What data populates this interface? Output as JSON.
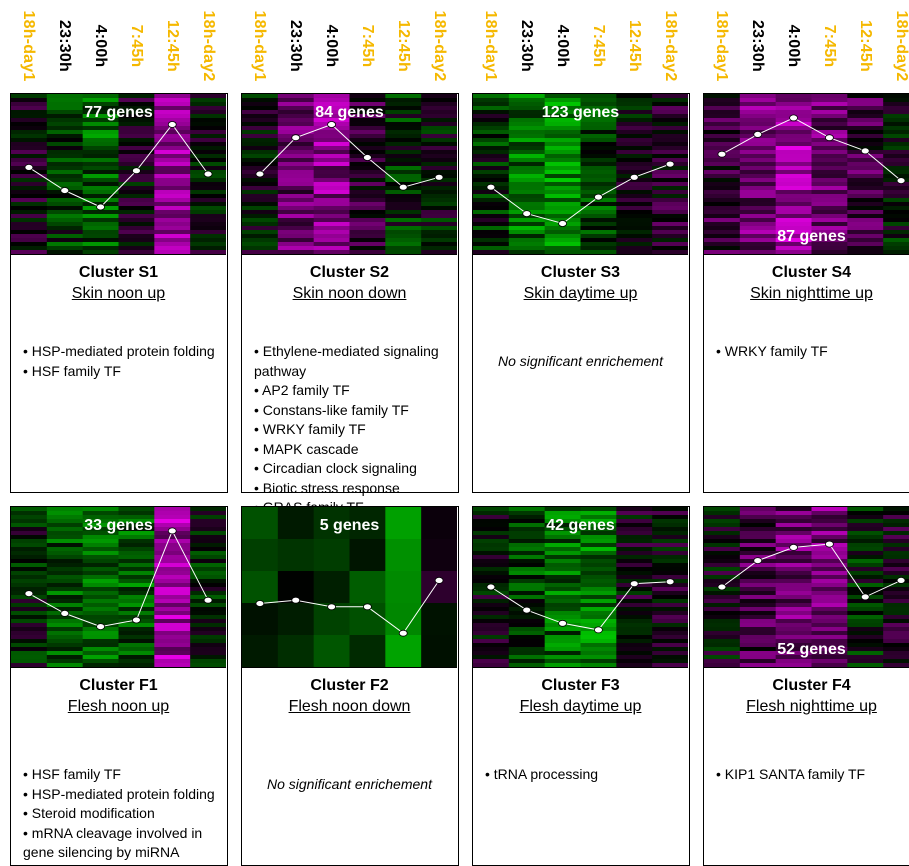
{
  "timepoints": [
    {
      "label": "18h-day1",
      "color": "#f5b800"
    },
    {
      "label": "23:30h",
      "color": "#000000"
    },
    {
      "label": "4:00h",
      "color": "#000000"
    },
    {
      "label": "7:45h",
      "color": "#f5b800"
    },
    {
      "label": "12:45h",
      "color": "#f5b800"
    },
    {
      "label": "18h-day2",
      "color": "#f5b800"
    }
  ],
  "colors": {
    "up": "#ff00ff",
    "down": "#00ff00",
    "neutral": "#000000",
    "line": "#ffffff"
  },
  "clusters": [
    {
      "id": "S1",
      "title": "Cluster S1",
      "subtitle": "Skin noon up",
      "genes": "77 genes",
      "profile": [
        0.1,
        -0.25,
        -0.5,
        0.05,
        0.75,
        0.0
      ],
      "terms": [
        "• HSP-mediated protein folding",
        "• HSF family TF"
      ],
      "empty": ""
    },
    {
      "id": "S2",
      "title": "Cluster S2",
      "subtitle": "Skin noon down",
      "genes": "84 genes",
      "profile": [
        0.0,
        0.55,
        0.75,
        0.25,
        -0.2,
        -0.05
      ],
      "terms": [
        "• Ethylene-mediated signaling pathway",
        "• AP2 family TF",
        "• Constans-like family TF",
        "• WRKY family TF",
        "• MAPK cascade",
        "• Circadian clock signaling",
        "• Biotic stress response",
        "• GRAS family TF"
      ],
      "empty": ""
    },
    {
      "id": "S3",
      "title": "Cluster S3",
      "subtitle": "Skin daytime up",
      "genes": "123 genes",
      "profile": [
        -0.2,
        -0.6,
        -0.75,
        -0.35,
        -0.05,
        0.15
      ],
      "terms": [],
      "empty": "No significant enrichement"
    },
    {
      "id": "S4",
      "title": "Cluster S4",
      "subtitle": "Skin nighttime up",
      "genes": "87 genes",
      "profile": [
        0.3,
        0.6,
        0.85,
        0.55,
        0.35,
        -0.1
      ],
      "terms": [
        "• WRKY family TF"
      ],
      "empty": ""
    },
    {
      "id": "F1",
      "title": "Cluster F1",
      "subtitle": "Flesh noon up",
      "genes": "33 genes",
      "profile": [
        -0.1,
        -0.4,
        -0.6,
        -0.5,
        0.85,
        -0.2
      ],
      "terms": [
        "• HSF family TF",
        "• HSP-mediated protein folding",
        "• Steroid modification",
        "• mRNA cleavage involved in gene silencing by miRNA"
      ],
      "empty": ""
    },
    {
      "id": "F2",
      "title": "Cluster F2",
      "subtitle": "Flesh noon down",
      "genes": "5 genes",
      "profile": [
        -0.25,
        -0.2,
        -0.3,
        -0.3,
        -0.7,
        0.1
      ],
      "terms": [],
      "empty": "No significant enrichement"
    },
    {
      "id": "F3",
      "title": "Cluster F3",
      "subtitle": "Flesh daytime up",
      "genes": "42 genes",
      "profile": [
        0.0,
        -0.35,
        -0.55,
        -0.65,
        0.05,
        0.08
      ],
      "terms": [
        "• tRNA processing"
      ],
      "empty": ""
    },
    {
      "id": "F4",
      "title": "Cluster F4",
      "subtitle": "Flesh nighttime up",
      "genes": "52 genes",
      "profile": [
        0.0,
        0.4,
        0.6,
        0.65,
        -0.15,
        0.1
      ],
      "terms": [
        "• KIP1 SANTA family TF"
      ],
      "empty": ""
    }
  ]
}
